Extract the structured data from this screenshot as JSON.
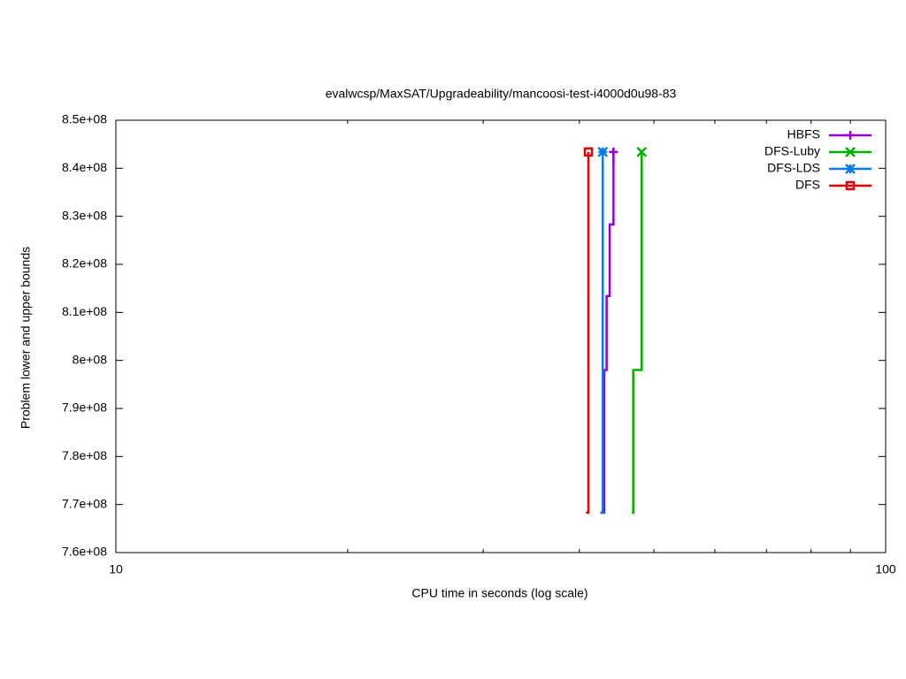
{
  "chart_data": {
    "type": "line",
    "title": "evalwcsp/MaxSAT/Upgradeability/mancoosi-test-i4000d0u98-83",
    "x_label": "CPU time in seconds (log scale)",
    "y_label": "Problem lower and upper bounds",
    "xscale": "log",
    "xlim": [
      10,
      100
    ],
    "xticks": [
      10,
      100
    ],
    "xminorticks": [
      20,
      30,
      40,
      50,
      60,
      70,
      80,
      90
    ],
    "ylim": [
      760000000,
      850000000
    ],
    "yticks": [
      {
        "value": 760000000,
        "label": "7.6e+08"
      },
      {
        "value": 770000000,
        "label": "7.7e+08"
      },
      {
        "value": 780000000,
        "label": "7.8e+08"
      },
      {
        "value": 790000000,
        "label": "7.9e+08"
      },
      {
        "value": 800000000,
        "label": "8e+08"
      },
      {
        "value": 810000000,
        "label": "8.1e+08"
      },
      {
        "value": 820000000,
        "label": "8.2e+08"
      },
      {
        "value": 830000000,
        "label": "8.3e+08"
      },
      {
        "value": 840000000,
        "label": "8.4e+08"
      },
      {
        "value": 850000000,
        "label": "8.5e+08"
      }
    ],
    "legend": "top-right",
    "series": [
      {
        "name": "HBFS",
        "color": "#9400d3",
        "marker": "plus",
        "x": [
          42.6,
          43.1,
          43.1,
          43.4,
          43.4,
          43.8,
          43.8,
          44.3,
          44.3
        ],
        "values": [
          768300000,
          768300000,
          798000000,
          798000000,
          813400000,
          813400000,
          828300000,
          828300000,
          843400000
        ]
      },
      {
        "name": "DFS-Luby",
        "color": "#00b000",
        "marker": "cross",
        "x": [
          46.8,
          47.0,
          47.0,
          48.2,
          48.2
        ],
        "values": [
          768300000,
          768300000,
          798000000,
          798000000,
          843400000
        ]
      },
      {
        "name": "DFS-LDS",
        "color": "#0a7ae6",
        "marker": "star",
        "x": [
          42.6,
          42.9,
          42.9
        ],
        "values": [
          768300000,
          768300000,
          843400000
        ]
      },
      {
        "name": "DFS",
        "color": "#e00000",
        "marker": "square",
        "x": [
          40.8,
          41.1,
          41.1
        ],
        "values": [
          768300000,
          768300000,
          843400000
        ]
      }
    ]
  }
}
